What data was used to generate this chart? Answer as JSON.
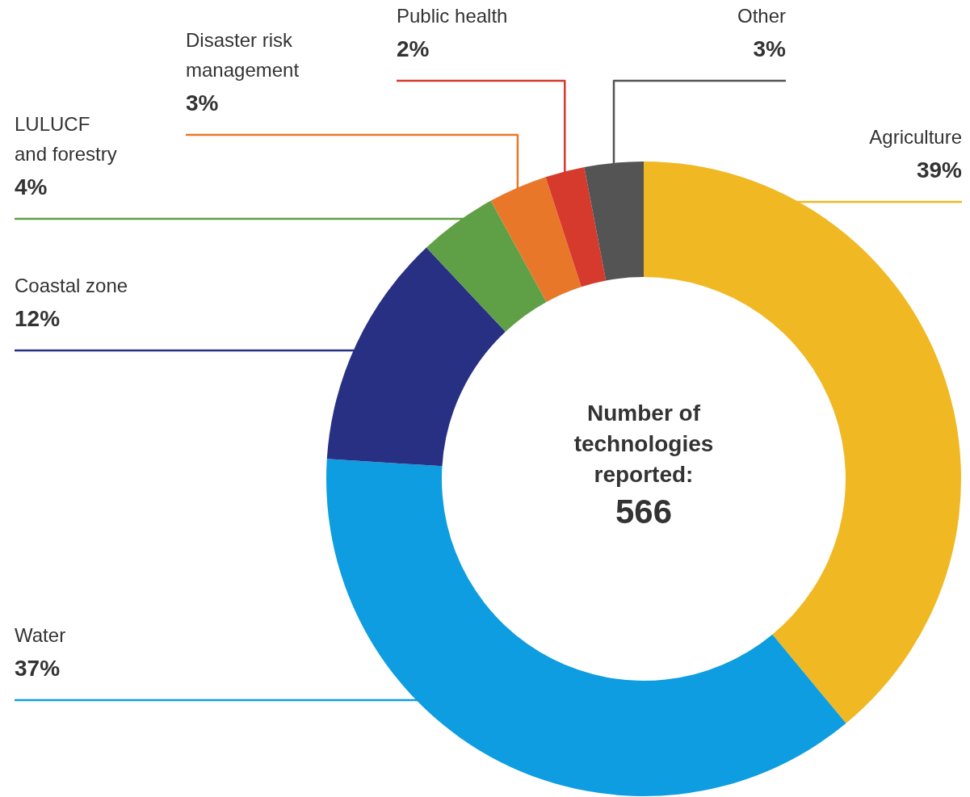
{
  "chart_data": {
    "type": "donut",
    "categories": [
      "Agriculture",
      "Water",
      "Coastal zone",
      "LULUCF and forestry",
      "Disaster risk management",
      "Public health",
      "Other"
    ],
    "values": [
      39,
      37,
      12,
      4,
      3,
      2,
      3
    ],
    "value_labels": [
      "39%",
      "37%",
      "12%",
      "4%",
      "3%",
      "2%",
      "3%"
    ],
    "colors": [
      "#f0b823",
      "#0d9de0",
      "#283084",
      "#5f9f45",
      "#e8772a",
      "#d63a2c",
      "#545454"
    ],
    "annotations": [
      "Number of technologies reported:",
      "566"
    ]
  }
}
